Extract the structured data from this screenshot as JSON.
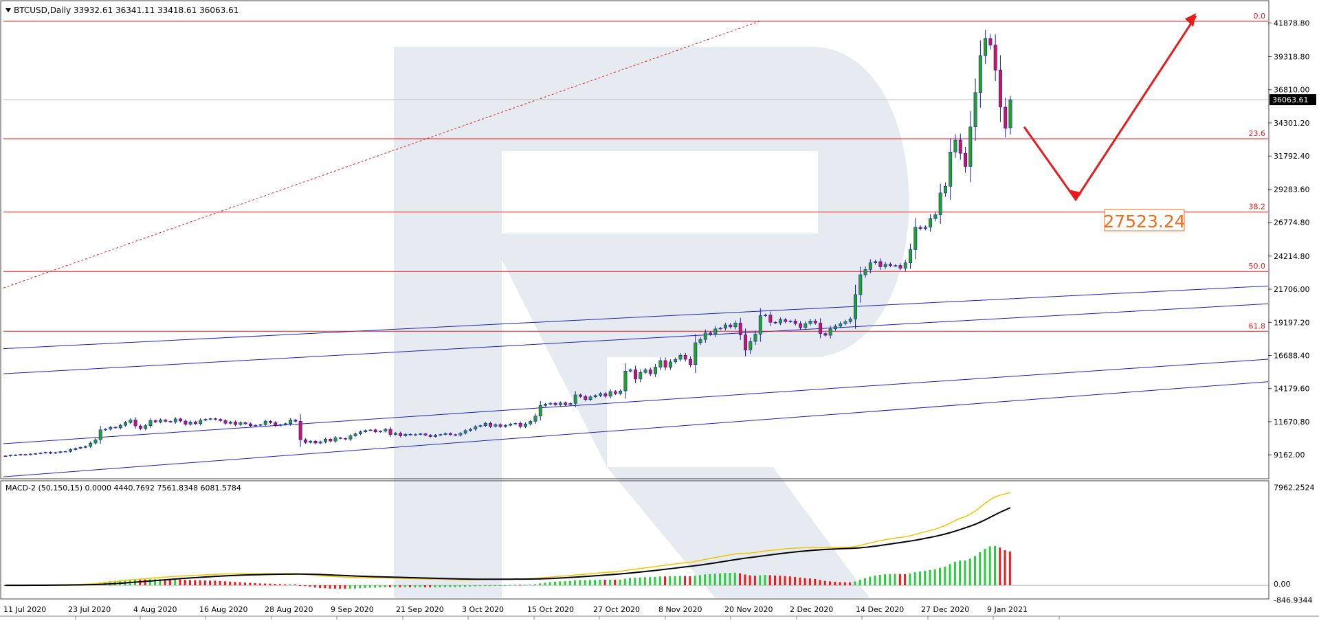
{
  "header": {
    "symbol_line": "BTCUSD,Daily  33932.61 36341.11 33418.61 36063.61",
    "macd_line": "MACD-2 (50,150,15) 0.0000 4440.7692 7561.8348 6081.5784"
  },
  "colors": {
    "bull": "#1fa51f",
    "bear": "#d0145a",
    "wick": "#1a1ac8",
    "fib": "#e81b1b",
    "channel": "#1e1ec8",
    "macd_signal": "#f2c500",
    "macd_main": "#000000",
    "hist_pos": "#2ecc40",
    "hist_neg": "#ee1c1c",
    "watermark": "#e6ebf2"
  },
  "chart_data": {
    "type": "candlestick",
    "title": "BTCUSD,Daily",
    "current_ohlc": {
      "open": 33932.61,
      "high": 36341.11,
      "low": 33418.61,
      "close": 36063.61
    },
    "price_axis": {
      "ticks": [
        41878.8,
        39318.8,
        36810.0,
        34301.2,
        31792.4,
        29283.6,
        26774.8,
        24214.8,
        21706.0,
        19197.2,
        16688.4,
        14179.6,
        11670.8,
        9162.0
      ],
      "tick_labels": [
        "41878.80",
        "39318.80",
        "36810.00",
        "34301.20",
        "31792.40",
        "29283.60",
        "26774.80",
        "24214.80",
        "21706.00",
        "19197.20",
        "16688.40",
        "14179.60",
        "11670.80",
        "9162.00"
      ],
      "range": [
        7400,
        43300
      ]
    },
    "current_price_label": "36063.61",
    "time_axis": {
      "labels": [
        "11 Jul 2020",
        "23 Jul 2020",
        "4 Aug 2020",
        "16 Aug 2020",
        "28 Aug 2020",
        "9 Sep 2020",
        "21 Sep 2020",
        "3 Oct 2020",
        "15 Oct 2020",
        "27 Oct 2020",
        "8 Nov 2020",
        "20 Nov 2020",
        "2 Dec 2020",
        "14 Dec 2020",
        "27 Dec 2020",
        "9 Jan 2021"
      ]
    },
    "fibonacci": [
      {
        "level": "0.0",
        "price": 42000
      },
      {
        "level": "23.6",
        "price": 33100
      },
      {
        "level": "38.2",
        "price": 27550
      },
      {
        "level": "50.0",
        "price": 23050
      },
      {
        "level": "61.8",
        "price": 18520
      }
    ],
    "target_label": "27523.24",
    "closes": [
      9080,
      9130,
      9150,
      9190,
      9180,
      9220,
      9250,
      9300,
      9350,
      9280,
      9330,
      9400,
      9420,
      9560,
      9650,
      9730,
      9800,
      10050,
      10300,
      11050,
      11100,
      11250,
      11200,
      11400,
      11600,
      11800,
      11350,
      11150,
      11370,
      11750,
      11650,
      11800,
      11700,
      11650,
      11880,
      11720,
      11480,
      11650,
      11520,
      11780,
      11850,
      11900,
      11850,
      11750,
      11550,
      11650,
      11450,
      11600,
      11510,
      11370,
      11400,
      11450,
      11700,
      11600,
      11380,
      11450,
      11520,
      11800,
      11700,
      10300,
      10100,
      10200,
      10050,
      10150,
      10350,
      10200,
      10450,
      10400,
      10350,
      10600,
      10750,
      10900,
      11000,
      11050,
      10900,
      10950,
      11100,
      10700,
      10800,
      10600,
      10720,
      10670,
      10700,
      10750,
      10650,
      10550,
      10650,
      10700,
      10780,
      10690,
      10650,
      10800,
      11000,
      11100,
      11300,
      11370,
      11550,
      11320,
      11450,
      11300,
      11400,
      11500,
      11550,
      11300,
      11500,
      11700,
      12100,
      12900,
      13000,
      13070,
      12950,
      13100,
      12950,
      13050,
      13700,
      13580,
      13350,
      13550,
      13650,
      13800,
      13600,
      13950,
      13800,
      14000,
      15500,
      15600,
      14900,
      15400,
      15600,
      15300,
      15800,
      16300,
      15800,
      16200,
      16400,
      16700,
      16400,
      16000,
      17650,
      17900,
      18400,
      18300,
      18700,
      18750,
      19000,
      18850,
      19150,
      18250,
      17100,
      17750,
      18300,
      19700,
      19750,
      19200,
      19150,
      19400,
      19250,
      19300,
      19100,
      18800,
      19100,
      19300,
      19150,
      18350,
      18220,
      18700,
      18900,
      19100,
      19250,
      19450,
      21300,
      22800,
      23200,
      23700,
      23800,
      23400,
      23600,
      23500,
      23500,
      23300,
      23700,
      24700,
      26400,
      26300,
      26400,
      27050,
      27350,
      29000,
      29500,
      32100,
      33000,
      32000,
      31000,
      34000,
      36600,
      39400,
      40700,
      40200,
      38300,
      35500,
      33900,
      36063.61
    ],
    "macd": {
      "label": "MACD-2 (50,150,15)",
      "values": {
        "v1": 0.0,
        "v2": 4440.7692,
        "v3": 7561.8348,
        "v4": 6081.5784
      },
      "axis_labels": [
        "7962.2524",
        "0.00",
        "-846.9344"
      ],
      "range": [
        -1000,
        8500
      ]
    }
  }
}
